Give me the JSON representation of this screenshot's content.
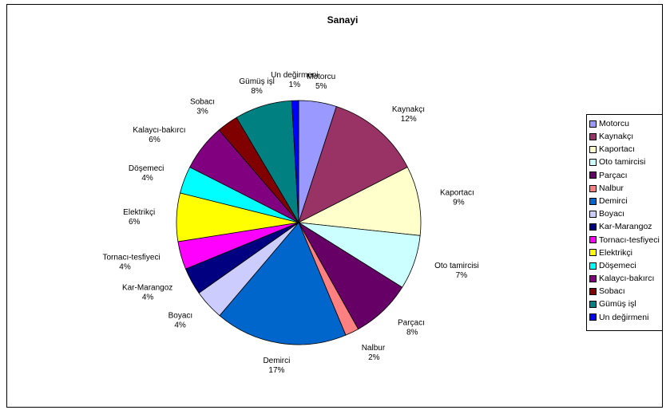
{
  "chart_data": {
    "type": "pie",
    "title": "Sanayi",
    "legend_position": "right",
    "slices": [
      {
        "label": "Motorcu",
        "percent_label": "5%",
        "value": 5,
        "color": "#9999FF"
      },
      {
        "label": "Kaynakçı",
        "percent_label": "12%",
        "value": 12.5,
        "color": "#993366"
      },
      {
        "label": "Kaportacı",
        "percent_label": "9%",
        "value": 9.2,
        "color": "#FFFFCC"
      },
      {
        "label": "Oto tamircisi",
        "percent_label": "7%",
        "value": 7.2,
        "color": "#CCFFFF"
      },
      {
        "label": "Parçacı",
        "percent_label": "8%",
        "value": 8,
        "color": "#660066"
      },
      {
        "label": "Nalbur",
        "percent_label": "2%",
        "value": 1.8,
        "color": "#FF8080"
      },
      {
        "label": "Demirci",
        "percent_label": "17%",
        "value": 17.5,
        "color": "#0066CC"
      },
      {
        "label": "Boyacı",
        "percent_label": "4%",
        "value": 4,
        "color": "#CCCCFF"
      },
      {
        "label": "Kar-Marangoz",
        "percent_label": "4%",
        "value": 3.6,
        "color": "#000080"
      },
      {
        "label": "Tornacı-tesfiyeci",
        "percent_label": "4%",
        "value": 3.7,
        "color": "#FF00FF"
      },
      {
        "label": "Elektrikçi",
        "percent_label": "6%",
        "value": 6.4,
        "color": "#FFFF00"
      },
      {
        "label": "Döşemeci",
        "percent_label": "4%",
        "value": 3.6,
        "color": "#00FFFF"
      },
      {
        "label": "Kalaycı-bakırcı",
        "percent_label": "6%",
        "value": 6.2,
        "color": "#800080"
      },
      {
        "label": "Sobacı",
        "percent_label": "3%",
        "value": 2.8,
        "color": "#800000"
      },
      {
        "label": "Gümüş işl",
        "percent_label": "8%",
        "value": 7.6,
        "color": "#008080"
      },
      {
        "label": "Un değirmeni",
        "percent_label": "1%",
        "value": 0.9,
        "color": "#0000FF"
      }
    ]
  }
}
